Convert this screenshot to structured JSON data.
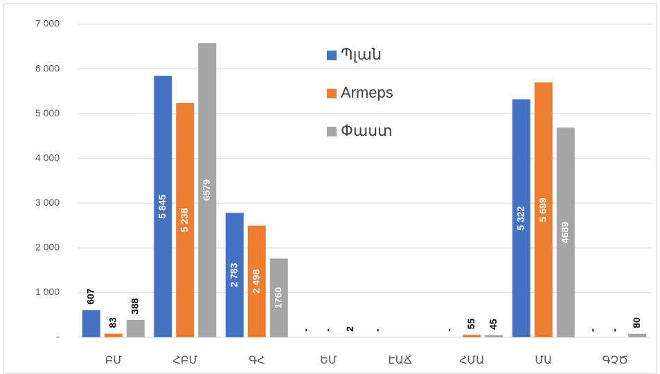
{
  "chart_data": {
    "type": "bar",
    "categories": [
      "ԲՄ",
      "ՀԲՄ",
      "ԳՀ",
      "ԵՄ",
      "ԷԱՃ",
      "ՀՄԱ",
      "ՄԱ",
      "ԳՉԾ"
    ],
    "series": [
      {
        "name": "Պլան",
        "color": "#4472c4",
        "values": [
          607,
          5845,
          2783,
          0,
          0,
          0,
          5322,
          0
        ],
        "value_labels": [
          "607",
          "5 845",
          "2 783",
          "-",
          "-",
          "-",
          "5 322",
          "-"
        ]
      },
      {
        "name": "Armeps",
        "color": "#ed7d31",
        "values": [
          83,
          5238,
          2498,
          0,
          null,
          55,
          5699,
          0
        ],
        "value_labels": [
          "83",
          "5 238",
          "2 498",
          "-",
          null,
          "55",
          "5 699",
          "-"
        ]
      },
      {
        "name": "Փաստ",
        "color": "#a5a5a5",
        "values": [
          388,
          6579,
          1760,
          2,
          null,
          45,
          4689,
          80
        ],
        "value_labels": [
          "388",
          "6579",
          "1760",
          "2",
          null,
          "45",
          "4689",
          "80"
        ]
      }
    ],
    "ylim": [
      0,
      7000
    ],
    "yticks": [
      {
        "value": 0,
        "label": "-"
      },
      {
        "value": 1000,
        "label": "1 000"
      },
      {
        "value": 2000,
        "label": "2 000"
      },
      {
        "value": 3000,
        "label": "3 000"
      },
      {
        "value": 4000,
        "label": "4 000"
      },
      {
        "value": 5000,
        "label": "5 000"
      },
      {
        "value": 6000,
        "label": "6 000"
      },
      {
        "value": 7000,
        "label": "7 000"
      }
    ],
    "grid": true,
    "legend": "top"
  }
}
